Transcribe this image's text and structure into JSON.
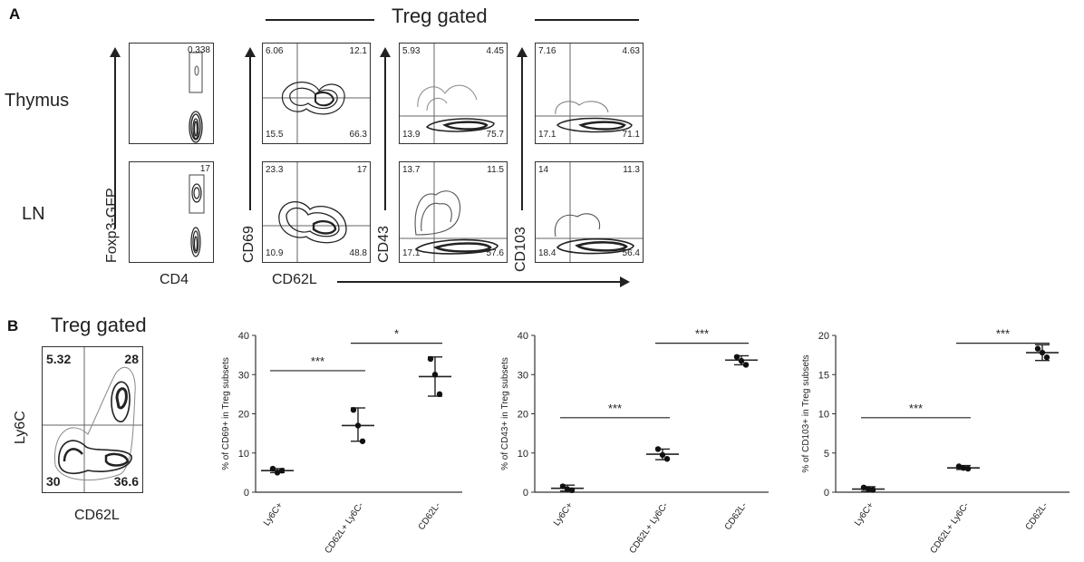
{
  "figure": {
    "panel_a": {
      "letter": "A",
      "header": "Treg gated",
      "row_labels": [
        "Thymus",
        "LN"
      ],
      "foxp3_label": "Foxp3-GFP",
      "cd4_label": "CD4",
      "cd62l_label": "CD62L",
      "y_markers": [
        "CD69",
        "CD43",
        "CD103"
      ],
      "cd4_gates": {
        "thymus": "0.338",
        "ln": "17"
      },
      "quadrants": {
        "cd69": {
          "thymus": {
            "ul": "6.06",
            "ur": "12.1",
            "ll": "15.5",
            "lr": "66.3"
          },
          "ln": {
            "ul": "23.3",
            "ur": "17",
            "ll": "10.9",
            "lr": "48.8"
          }
        },
        "cd43": {
          "thymus": {
            "ul": "5.93",
            "ur": "4.45",
            "ll": "13.9",
            "lr": "75.7"
          },
          "ln": {
            "ul": "13.7",
            "ur": "11.5",
            "ll": "17.1",
            "lr": "57.6"
          }
        },
        "cd103": {
          "thymus": {
            "ul": "7.16",
            "ur": "4.63",
            "ll": "17.1",
            "lr": "71.1"
          },
          "ln": {
            "ul": "14",
            "ur": "11.3",
            "ll": "18.4",
            "lr": "56.4"
          }
        }
      }
    },
    "panel_b": {
      "letter": "B",
      "header": "Treg gated",
      "ylabel": "Ly6C",
      "xlabel": "CD62L",
      "quadrants": {
        "ul": "5.32",
        "ur": "28",
        "ll": "30",
        "lr": "36.6"
      }
    }
  },
  "chart_data": [
    {
      "type": "scatter",
      "title": "",
      "xlabel": "",
      "ylabel": "% of CD69+ in Treg subsets",
      "categories": [
        "Ly6C+",
        "CD62L+ Ly6C-",
        "CD62L-"
      ],
      "ylim": [
        0,
        40
      ],
      "yticks": [
        "0",
        "10",
        "20",
        "30",
        "40"
      ],
      "points": [
        [
          6,
          5,
          5.5
        ],
        [
          21,
          17,
          13
        ],
        [
          34,
          30,
          25
        ]
      ],
      "means": [
        5.5,
        17,
        29.5
      ],
      "errors": [
        [
          5,
          6
        ],
        [
          13,
          21.5
        ],
        [
          24.5,
          34.5
        ]
      ],
      "significance": [
        {
          "from": 0,
          "to": 1,
          "label": "***",
          "y": 31
        },
        {
          "from": 1,
          "to": 2,
          "label": "*",
          "y": 38
        }
      ]
    },
    {
      "type": "scatter",
      "title": "",
      "xlabel": "",
      "ylabel": "% of CD43+ in Treg subsets",
      "categories": [
        "Ly6C+",
        "CD62L+ Ly6C-",
        "CD62L-"
      ],
      "ylim": [
        0,
        40
      ],
      "yticks": [
        "0",
        "10",
        "20",
        "30",
        "40"
      ],
      "points": [
        [
          1.5,
          0.8,
          0.5
        ],
        [
          11,
          9.5,
          8.5
        ],
        [
          34.5,
          33.5,
          32.5
        ]
      ],
      "means": [
        1,
        9.7,
        33.7
      ],
      "errors": [
        [
          0.3,
          1.8
        ],
        [
          8.3,
          11
        ],
        [
          32.5,
          34.8
        ]
      ],
      "significance": [
        {
          "from": 0,
          "to": 1,
          "label": "***",
          "y": 19
        },
        {
          "from": 1,
          "to": 2,
          "label": "***",
          "y": 38
        }
      ]
    },
    {
      "type": "scatter",
      "title": "",
      "xlabel": "",
      "ylabel": "% of CD103+ in Treg subsets",
      "categories": [
        "Ly6C+",
        "CD62L+ Ly6C-",
        "CD62L-"
      ],
      "ylim": [
        0,
        20
      ],
      "yticks": [
        "0",
        "5",
        "10",
        "15",
        "20"
      ],
      "points": [
        [
          0.6,
          0.4,
          0.3
        ],
        [
          3.3,
          3.1,
          3.0
        ],
        [
          18.3,
          17.8,
          17.2
        ]
      ],
      "means": [
        0.4,
        3.1,
        17.8
      ],
      "errors": [
        [
          0.1,
          0.7
        ],
        [
          2.9,
          3.4
        ],
        [
          16.8,
          18.8
        ]
      ],
      "significance": [
        {
          "from": 0,
          "to": 1,
          "label": "***",
          "y": 9.5
        },
        {
          "from": 1,
          "to": 2,
          "label": "***",
          "y": 19
        }
      ]
    }
  ]
}
